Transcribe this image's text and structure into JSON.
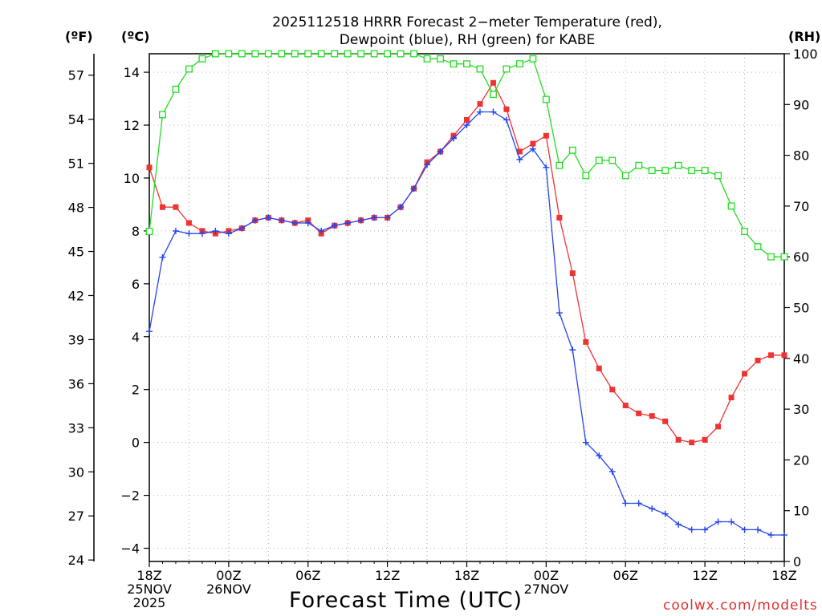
{
  "chart_data": {
    "type": "line",
    "title_line1": "2025112518 HRRR Forecast 2−meter Temperature (red),",
    "title_line2": "Dewpoint (blue), RH (green) for KABE",
    "xlabel": "Forecast Time (UTC)",
    "credit": "coolwx.com/modelts",
    "unit_f": "(ºF)",
    "unit_c": "(ºC)",
    "unit_rh": "(RH)",
    "xlim": [
      0,
      48
    ],
    "ylim_c": [
      -4.5,
      14.7
    ],
    "ylim_rh": [
      0,
      100
    ],
    "c_ticks": [
      -4,
      -2,
      0,
      2,
      4,
      6,
      8,
      10,
      12,
      14
    ],
    "c_tick_labels": [
      "−4",
      "−2",
      "0",
      "2",
      "4",
      "6",
      "8",
      "10",
      "12",
      "14"
    ],
    "f_ticks": [
      24,
      27,
      30,
      33,
      36,
      39,
      42,
      45,
      48,
      51,
      54,
      57
    ],
    "rh_ticks": [
      0,
      10,
      20,
      30,
      40,
      50,
      60,
      70,
      80,
      90,
      100
    ],
    "x_ticks": [
      {
        "x": 0,
        "lines": [
          "18Z",
          "25NOV",
          "2025"
        ]
      },
      {
        "x": 6,
        "lines": [
          "00Z",
          "26NOV"
        ]
      },
      {
        "x": 12,
        "lines": [
          "06Z"
        ]
      },
      {
        "x": 18,
        "lines": [
          "12Z"
        ]
      },
      {
        "x": 24,
        "lines": [
          "18Z"
        ]
      },
      {
        "x": 30,
        "lines": [
          "00Z",
          "27NOV"
        ]
      },
      {
        "x": 36,
        "lines": [
          "06Z"
        ]
      },
      {
        "x": 42,
        "lines": [
          "12Z"
        ]
      },
      {
        "x": 48,
        "lines": [
          "18Z"
        ]
      }
    ],
    "series": [
      {
        "name": "Temperature",
        "unit": "C",
        "color": "#ee3333",
        "marker": "filled-square",
        "values": [
          10.4,
          8.9,
          8.9,
          8.3,
          8.0,
          7.9,
          8.0,
          8.1,
          8.4,
          8.5,
          8.4,
          8.3,
          8.4,
          7.9,
          8.2,
          8.3,
          8.4,
          8.5,
          8.5,
          8.9,
          9.6,
          10.6,
          11.0,
          11.6,
          12.2,
          12.8,
          13.6,
          12.6,
          11.0,
          11.3,
          11.6,
          8.5,
          6.4,
          3.8,
          2.8,
          2.0,
          1.4,
          1.1,
          1.0,
          0.8,
          0.1,
          0.0,
          0.1,
          0.6,
          1.7,
          2.6,
          3.1,
          3.3,
          3.3
        ]
      },
      {
        "name": "Dewpoint",
        "unit": "C",
        "color": "#2244ee",
        "marker": "plus",
        "values": [
          4.2,
          7.0,
          8.0,
          7.9,
          7.9,
          8.0,
          7.9,
          8.1,
          8.4,
          8.5,
          8.4,
          8.3,
          8.3,
          8.0,
          8.2,
          8.3,
          8.4,
          8.5,
          8.5,
          8.9,
          9.6,
          10.5,
          11.0,
          11.5,
          12.0,
          12.5,
          12.5,
          12.2,
          10.7,
          11.1,
          10.4,
          4.9,
          3.5,
          0.0,
          -0.5,
          -1.1,
          -2.3,
          -2.3,
          -2.5,
          -2.7,
          -3.1,
          -3.3,
          -3.3,
          -3.0,
          -3.0,
          -3.3,
          -3.3,
          -3.5,
          -3.5
        ]
      },
      {
        "name": "RH",
        "unit": "%",
        "color": "#22dd22",
        "marker": "open-square",
        "values": [
          65,
          88,
          93,
          97,
          99,
          100,
          100,
          100,
          100,
          100,
          100,
          100,
          100,
          100,
          100,
          100,
          100,
          100,
          100,
          100,
          100,
          99,
          99,
          98,
          98,
          97,
          92,
          97,
          98,
          99,
          91,
          78,
          81,
          76,
          79,
          79,
          76,
          78,
          77,
          77,
          78,
          77,
          77,
          76,
          70,
          65,
          62,
          60,
          60
        ]
      }
    ]
  }
}
